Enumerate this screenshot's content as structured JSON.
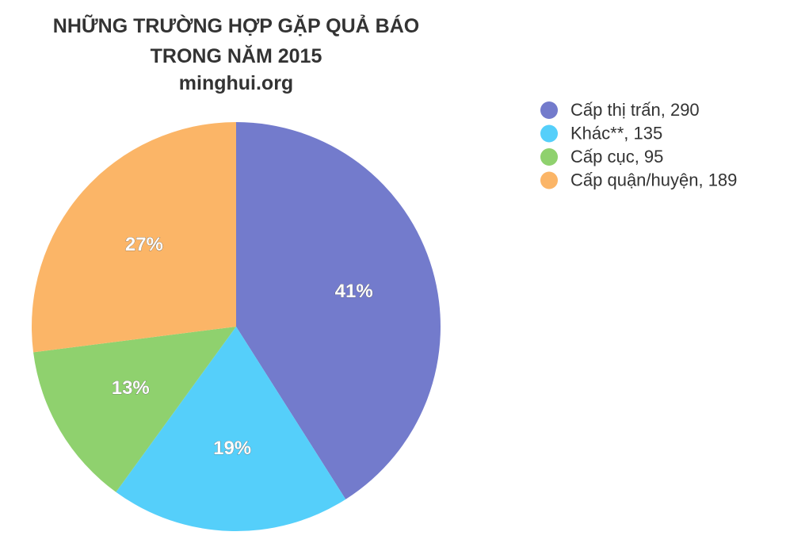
{
  "chart_data": {
    "type": "pie",
    "title": "NHỮNG TRƯỜNG HỢP GẶP QUẢ BÁO TRONG NĂM 2015",
    "subtitle": "minghui.org",
    "categories": [
      "Cấp thị trấn, 290",
      "Khác**, 135",
      "Cấp cục, 95",
      "Cấp quận/huyện, 189"
    ],
    "values": [
      41,
      19,
      13,
      27
    ],
    "value_labels": [
      "41%",
      "19%",
      "13%",
      "27%"
    ],
    "colors": [
      "#737bcc",
      "#55cffa",
      "#8fd16e",
      "#fbb567"
    ]
  }
}
